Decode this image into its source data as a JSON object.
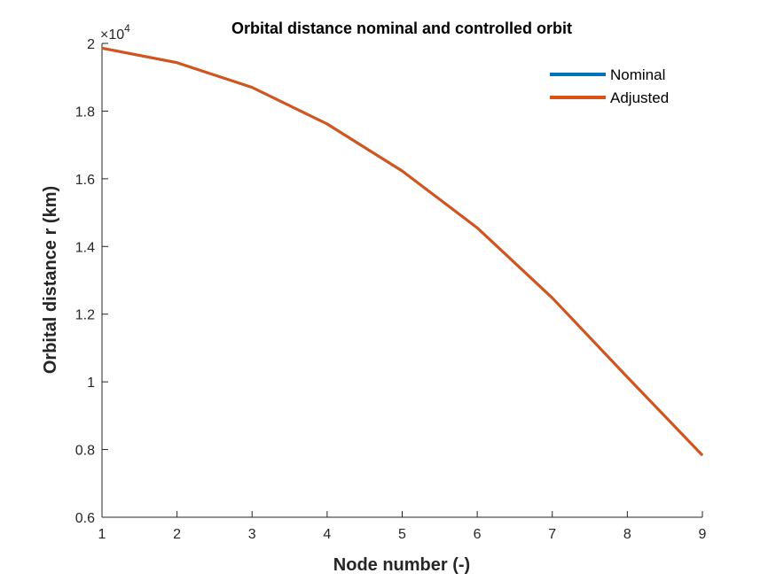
{
  "chart_data": {
    "type": "line",
    "title": "Orbital distance nominal and controlled orbit",
    "xlabel": "Node number (-)",
    "ylabel": "Orbital distance r (km)",
    "y_exponent_label": "×10",
    "y_exponent_power": "4",
    "xlim": [
      1,
      9
    ],
    "ylim": [
      0.6,
      2.0
    ],
    "x_ticks": [
      1,
      2,
      3,
      4,
      5,
      6,
      7,
      8,
      9
    ],
    "x_tick_labels": [
      "1",
      "2",
      "3",
      "4",
      "5",
      "6",
      "7",
      "8",
      "9"
    ],
    "y_ticks": [
      0.6,
      0.8,
      1.0,
      1.2,
      1.4,
      1.6,
      1.8,
      2.0
    ],
    "y_tick_labels": [
      "0.6",
      "0.8",
      "1",
      "1.2",
      "1.4",
      "1.6",
      "1.8",
      "2"
    ],
    "grid": false,
    "legend_position": "top-right",
    "x": [
      1,
      2,
      3,
      4,
      5,
      6,
      7,
      8,
      9
    ],
    "series": [
      {
        "name": "Nominal",
        "color": "#0072BD",
        "values": [
          1.986,
          1.943,
          1.87,
          1.762,
          1.623,
          1.455,
          1.248,
          1.014,
          0.783
        ]
      },
      {
        "name": "Adjusted",
        "color": "#D95319",
        "values": [
          1.986,
          1.943,
          1.87,
          1.762,
          1.623,
          1.455,
          1.248,
          1.014,
          0.783
        ]
      }
    ]
  }
}
